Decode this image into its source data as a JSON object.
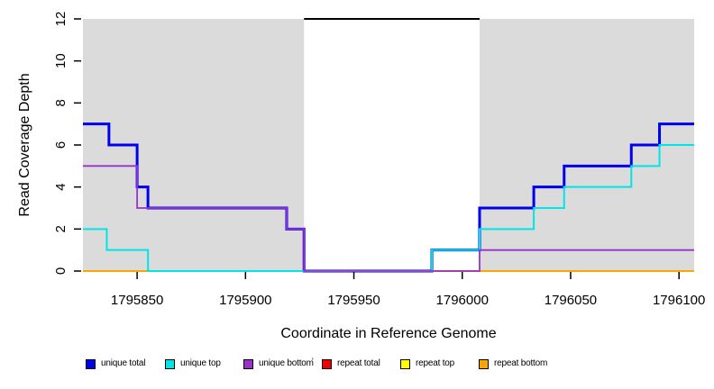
{
  "chart_data": {
    "type": "line",
    "subtype": "step",
    "title": "",
    "xlabel": "Coordinate in Reference Genome",
    "ylabel": "Read Coverage Depth",
    "xlim": [
      1795825,
      1796107
    ],
    "ylim": [
      0,
      12
    ],
    "x_ticks": [
      1795850,
      1795900,
      1795950,
      1796000,
      1796050,
      1796100
    ],
    "y_ticks": [
      0,
      2,
      4,
      6,
      8,
      10,
      12
    ],
    "grid": false,
    "shade_color": "#DBDBDB",
    "shaded_regions": [
      {
        "x_start": 1795825,
        "x_end": 1795927
      },
      {
        "x_start": 1796008,
        "x_end": 1796107
      }
    ],
    "repeat_region_marker": {
      "x_start": 1795927,
      "x_end": 1796008,
      "y": 12,
      "color": "#000000",
      "width": 2
    },
    "series": [
      {
        "name": "repeat total",
        "color": "#EE0000",
        "width": 1.5,
        "points": [
          [
            1795825,
            0
          ]
        ]
      },
      {
        "name": "repeat top",
        "color": "#FFFF00",
        "width": 1.5,
        "points": [
          [
            1795825,
            0
          ]
        ]
      },
      {
        "name": "repeat bottom",
        "color": "#FFA500",
        "width": 2,
        "points": [
          [
            1795825,
            0
          ]
        ]
      },
      {
        "name": "unique total",
        "color": "#0000EE",
        "width": 3,
        "points": [
          [
            1795825,
            7
          ],
          [
            1795837,
            6
          ],
          [
            1795850,
            4
          ],
          [
            1795855,
            3
          ],
          [
            1795919,
            2
          ],
          [
            1795927,
            0
          ],
          [
            1795986,
            1
          ],
          [
            1796008,
            3
          ],
          [
            1796033,
            4
          ],
          [
            1796047,
            5
          ],
          [
            1796078,
            6
          ],
          [
            1796091,
            7
          ]
        ]
      },
      {
        "name": "unique top",
        "color": "#00E5E5",
        "width": 2,
        "points": [
          [
            1795825,
            2
          ],
          [
            1795836,
            1
          ],
          [
            1795855,
            0
          ],
          [
            1795986,
            1
          ],
          [
            1796008,
            2
          ],
          [
            1796033,
            3
          ],
          [
            1796047,
            4
          ],
          [
            1796078,
            5
          ],
          [
            1796091,
            6
          ]
        ]
      },
      {
        "name": "unique bottom",
        "color": "#9932CC",
        "width": 1.8,
        "points": [
          [
            1795825,
            5
          ],
          [
            1795850,
            3
          ],
          [
            1795919,
            2
          ],
          [
            1795927,
            0
          ],
          [
            1796008,
            1
          ]
        ]
      }
    ],
    "legend": {
      "position": "bottom",
      "items": [
        {
          "label": "unique total",
          "color": "#0000EE"
        },
        {
          "label": "unique top",
          "color": "#00E5E5"
        },
        {
          "label": "unique bottom",
          "color": "#9932CC"
        },
        {
          "label": "repeat total",
          "color": "#EE0000"
        },
        {
          "label": "repeat top",
          "color": "#FFFF00"
        },
        {
          "label": "repeat bottom",
          "color": "#FFA500"
        }
      ]
    },
    "stray_mark": "'"
  }
}
